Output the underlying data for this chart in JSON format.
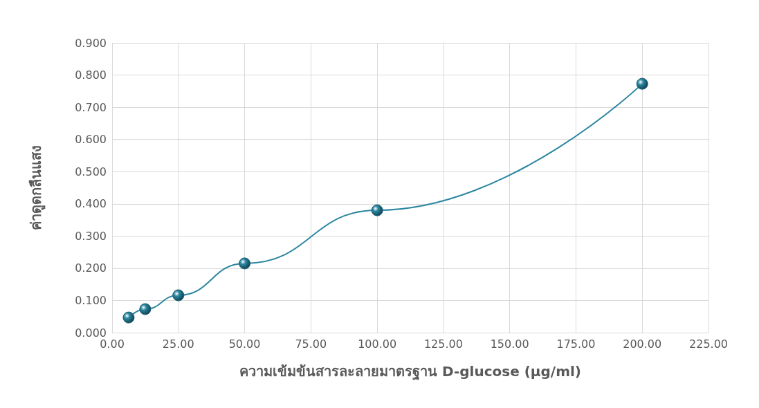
{
  "chart_data": {
    "type": "line",
    "xlabel": "ความเข้มข้นสารละลายมาตรฐาน D-glucose (µg/ml)",
    "ylabel": "ค่าดูดกลืนแสง",
    "x": [
      6.25,
      12.5,
      25,
      50,
      100,
      200
    ],
    "series": [
      {
        "color": "#2b86a0",
        "values": [
          0.047,
          0.073,
          0.116,
          0.215,
          0.38,
          0.773
        ]
      }
    ],
    "xlim": [
      0,
      225
    ],
    "xticks": [
      {
        "value": 0,
        "label": "0.00"
      },
      {
        "value": 25,
        "label": "25.00"
      },
      {
        "value": 50,
        "label": "50.00"
      },
      {
        "value": 75,
        "label": "75.00"
      },
      {
        "value": 100,
        "label": "100.00"
      },
      {
        "value": 125,
        "label": "125.00"
      },
      {
        "value": 150,
        "label": "150.00"
      },
      {
        "value": 175,
        "label": "175.00"
      },
      {
        "value": 200,
        "label": "200.00"
      },
      {
        "value": 225,
        "label": "225.00"
      }
    ],
    "ylim": [
      0,
      0.9
    ],
    "yticks": [
      {
        "value": 0,
        "label": "0.000"
      },
      {
        "value": 0.1,
        "label": "0.100"
      },
      {
        "value": 0.2,
        "label": "0.200"
      },
      {
        "value": 0.3,
        "label": "0.300"
      },
      {
        "value": 0.4,
        "label": "0.400"
      },
      {
        "value": 0.5,
        "label": "0.500"
      },
      {
        "value": 0.6,
        "label": "0.600"
      },
      {
        "value": 0.7,
        "label": "0.700"
      },
      {
        "value": 0.8,
        "label": "0.800"
      },
      {
        "value": 0.9,
        "label": "0.900"
      }
    ],
    "grid": true,
    "marker": "circle",
    "line_style": "solid"
  }
}
